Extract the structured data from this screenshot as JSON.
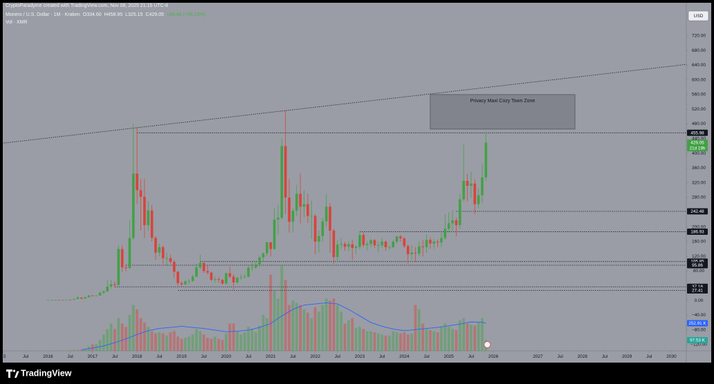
{
  "header": {
    "credit": "CryptoParadyme created with TradingView.com, Nov 08, 2025 21:15 UTC-8",
    "symbol": "Monero / U.S. Dollar · 1M · Kraken",
    "quote": [
      "O334.60",
      "H458.95",
      "L325.15",
      "C429.05",
      "+94.45 (+28.23%)"
    ],
    "volume_title": "Vol · XMR"
  },
  "currency_button": "USD",
  "footer": {
    "brand": "TradingView"
  },
  "chart_data": {
    "type": "candlestick",
    "up_color": "#43a047",
    "down_color": "#d9433b",
    "x": [
      "2016-01",
      "2016-02",
      "2016-03",
      "2016-04",
      "2016-05",
      "2016-06",
      "2016-07",
      "2016-08",
      "2016-09",
      "2016-10",
      "2016-11",
      "2016-12",
      "2017-01",
      "2017-02",
      "2017-03",
      "2017-04",
      "2017-05",
      "2017-06",
      "2017-07",
      "2017-08",
      "2017-09",
      "2017-10",
      "2017-11",
      "2017-12",
      "2018-01",
      "2018-02",
      "2018-03",
      "2018-04",
      "2018-05",
      "2018-06",
      "2018-07",
      "2018-08",
      "2018-09",
      "2018-10",
      "2018-11",
      "2018-12",
      "2019-01",
      "2019-02",
      "2019-03",
      "2019-04",
      "2019-05",
      "2019-06",
      "2019-07",
      "2019-08",
      "2019-09",
      "2019-10",
      "2019-11",
      "2019-12",
      "2020-01",
      "2020-02",
      "2020-03",
      "2020-04",
      "2020-05",
      "2020-06",
      "2020-07",
      "2020-08",
      "2020-09",
      "2020-10",
      "2020-11",
      "2020-12",
      "2021-01",
      "2021-02",
      "2021-03",
      "2021-04",
      "2021-05",
      "2021-06",
      "2021-07",
      "2021-08",
      "2021-09",
      "2021-10",
      "2021-11",
      "2021-12",
      "2022-01",
      "2022-02",
      "2022-03",
      "2022-04",
      "2022-05",
      "2022-06",
      "2022-07",
      "2022-08",
      "2022-09",
      "2022-10",
      "2022-11",
      "2022-12",
      "2023-01",
      "2023-02",
      "2023-03",
      "2023-04",
      "2023-05",
      "2023-06",
      "2023-07",
      "2023-08",
      "2023-09",
      "2023-10",
      "2023-11",
      "2023-12",
      "2024-01",
      "2024-02",
      "2024-03",
      "2024-04",
      "2024-05",
      "2024-06",
      "2024-07",
      "2024-08",
      "2024-09",
      "2024-10",
      "2024-11",
      "2024-12",
      "2025-01",
      "2025-02",
      "2025-03",
      "2025-04",
      "2025-05",
      "2025-06",
      "2025-07",
      "2025-08",
      "2025-09",
      "2025-10",
      "2025-11"
    ],
    "open": [
      0.6,
      0.9,
      1.5,
      1.9,
      1.3,
      1.3,
      2.3,
      2.0,
      4.0,
      8.0,
      5.0,
      9.0,
      13.8,
      13.0,
      13.4,
      21.0,
      25.0,
      38.0,
      44.0,
      42.0,
      140,
      90,
      88,
      170,
      345,
      300,
      282,
      205,
      245,
      170,
      130,
      145,
      115,
      115,
      105,
      78,
      47,
      44,
      52,
      53,
      65,
      90,
      102,
      80,
      76,
      56,
      58,
      56,
      46,
      74,
      65,
      49,
      62,
      63,
      65,
      89,
      90,
      98,
      117,
      128,
      158,
      140,
      220,
      225,
      420,
      280,
      214,
      244,
      290,
      255,
      262,
      230,
      230,
      160,
      175,
      215,
      255,
      190,
      118,
      152,
      154,
      146,
      153,
      143,
      146,
      178,
      151,
      154,
      164,
      150,
      150,
      160,
      145,
      145,
      160,
      174,
      169,
      148,
      126,
      130,
      128,
      147,
      145,
      165,
      155,
      160,
      158,
      170,
      195,
      210,
      218,
      205,
      275,
      325,
      312,
      318,
      262,
      286,
      334.6
    ],
    "high": [
      1.0,
      1.8,
      2.4,
      2.0,
      1.5,
      2.8,
      2.4,
      5.5,
      12,
      8.5,
      9.5,
      14.5,
      14.5,
      14.0,
      25,
      27,
      55,
      55,
      52,
      150,
      150,
      98,
      220,
      480,
      470,
      330,
      330,
      270,
      260,
      175,
      155,
      150,
      130,
      125,
      110,
      80,
      52,
      56,
      58,
      70,
      100,
      125,
      103,
      95,
      78,
      65,
      64,
      58,
      76,
      92,
      72,
      64,
      72,
      72,
      95,
      104,
      104,
      122,
      131,
      160,
      160,
      250,
      260,
      440,
      517,
      330,
      250,
      315,
      345,
      300,
      290,
      272,
      235,
      190,
      225,
      290,
      265,
      195,
      165,
      170,
      160,
      160,
      165,
      150,
      187,
      186,
      160,
      168,
      167,
      160,
      170,
      163,
      150,
      165,
      176,
      178,
      172,
      152,
      150,
      145,
      160,
      165,
      180,
      172,
      167,
      165,
      185,
      235,
      240,
      245,
      225,
      290,
      425,
      345,
      350,
      330,
      305,
      370,
      458.95
    ],
    "low": [
      0.4,
      0.8,
      1.2,
      1.2,
      1.1,
      1.2,
      1.7,
      1.9,
      3.8,
      4.5,
      4.8,
      7.8,
      10.5,
      11.5,
      13,
      18,
      23,
      33,
      35,
      41,
      78,
      80,
      86,
      165,
      262,
      190,
      170,
      190,
      160,
      110,
      120,
      100,
      95,
      100,
      62,
      40,
      38,
      42,
      45,
      50,
      63,
      85,
      75,
      70,
      52,
      48,
      48,
      43,
      44,
      60,
      30,
      45,
      56,
      60,
      62,
      80,
      85,
      90,
      107,
      120,
      120,
      138,
      180,
      220,
      235,
      185,
      185,
      230,
      210,
      225,
      210,
      168,
      125,
      130,
      160,
      200,
      130,
      100,
      104,
      140,
      135,
      134,
      110,
      126,
      140,
      145,
      137,
      145,
      143,
      131,
      144,
      135,
      138,
      142,
      155,
      160,
      143,
      100,
      110,
      105,
      120,
      120,
      130,
      140,
      140,
      145,
      145,
      165,
      185,
      190,
      175,
      195,
      270,
      270,
      280,
      235,
      250,
      265,
      325.15
    ],
    "close": [
      0.9,
      1.5,
      1.9,
      1.3,
      1.3,
      2.3,
      2.0,
      4.0,
      8.0,
      5.0,
      9.0,
      13.8,
      13.0,
      13.4,
      21.0,
      25.0,
      38.0,
      44.0,
      42.0,
      140,
      90,
      88,
      170,
      345,
      300,
      282,
      205,
      245,
      170,
      130,
      145,
      115,
      115,
      105,
      78,
      47,
      44,
      52,
      53,
      65,
      90,
      102,
      80,
      76,
      56,
      58,
      56,
      46,
      74,
      65,
      49,
      62,
      63,
      65,
      89,
      90,
      98,
      117,
      128,
      158,
      140,
      220,
      225,
      420,
      280,
      214,
      244,
      290,
      255,
      262,
      230,
      230,
      160,
      175,
      215,
      255,
      190,
      118,
      152,
      154,
      146,
      153,
      143,
      146,
      178,
      151,
      154,
      164,
      150,
      150,
      160,
      145,
      145,
      160,
      174,
      169,
      148,
      126,
      130,
      128,
      147,
      145,
      165,
      155,
      160,
      158,
      170,
      195,
      210,
      218,
      205,
      275,
      325,
      312,
      318,
      262,
      286,
      334.6,
      429.05
    ],
    "countdown": "21d 19h",
    "volume": {
      "values": [
        1,
        1,
        2,
        2,
        2,
        3,
        3,
        8,
        10,
        8,
        20,
        40,
        60,
        60,
        100,
        150,
        200,
        250,
        200,
        300,
        250,
        220,
        330,
        420,
        380,
        300,
        260,
        220,
        180,
        160,
        170,
        160,
        140,
        170,
        180,
        130,
        110,
        120,
        130,
        150,
        200,
        180,
        150,
        120,
        110,
        130,
        110,
        100,
        160,
        250,
        250,
        180,
        150,
        170,
        220,
        200,
        170,
        230,
        330,
        300,
        700,
        550,
        480,
        780,
        650,
        420,
        460,
        440,
        420,
        380,
        350,
        300,
        400,
        360,
        420,
        480,
        460,
        480,
        420,
        360,
        250,
        280,
        300,
        210,
        220,
        200,
        180,
        180,
        170,
        160,
        150,
        140,
        140,
        180,
        170,
        160,
        170,
        150,
        160,
        420,
        380,
        250,
        200,
        190,
        180,
        170,
        220,
        250,
        220,
        200,
        190,
        280,
        300,
        250,
        240,
        230,
        260,
        300,
        97.53
      ],
      "badge_label": "97.53 K",
      "badge_color": "#26a69a"
    },
    "volume_ma": {
      "color": "#2962ff",
      "x": [
        "2016-10",
        "2017-01",
        "2017-04",
        "2017-07",
        "2017-10",
        "2018-01",
        "2018-04",
        "2018-07",
        "2018-10",
        "2019-01",
        "2019-04",
        "2019-07",
        "2019-10",
        "2020-01",
        "2020-04",
        "2020-07",
        "2020-10",
        "2021-01",
        "2021-04",
        "2021-07",
        "2021-10",
        "2022-01",
        "2022-04",
        "2022-07",
        "2022-10",
        "2023-01",
        "2023-04",
        "2023-07",
        "2023-10",
        "2024-01",
        "2024-04",
        "2024-07",
        "2024-10",
        "2025-01",
        "2025-04",
        "2025-07",
        "2025-10",
        "2025-11"
      ],
      "values": [
        10,
        25,
        45,
        75,
        110,
        150,
        185,
        205,
        215,
        225,
        215,
        205,
        190,
        175,
        180,
        190,
        215,
        250,
        320,
        380,
        420,
        430,
        440,
        430,
        380,
        320,
        260,
        225,
        200,
        185,
        195,
        205,
        215,
        230,
        245,
        265,
        262,
        252.91
      ],
      "badge_label": "252.91 K"
    },
    "volume_lim": [
      0,
      3120
    ],
    "xlim": [
      "2015-01",
      "2030-05"
    ],
    "xticks": [
      {
        "value": "2015-01",
        "label": "15"
      },
      {
        "value": "2015-07",
        "label": "Jul"
      },
      {
        "value": "2016-01",
        "label": "2016"
      },
      {
        "value": "2016-07",
        "label": "Jul"
      },
      {
        "value": "2017-01",
        "label": "2017"
      },
      {
        "value": "2017-07",
        "label": "Jul"
      },
      {
        "value": "2018-01",
        "label": "2018"
      },
      {
        "value": "2018-07",
        "label": "Jul"
      },
      {
        "value": "2019-01",
        "label": "2019"
      },
      {
        "value": "2019-07",
        "label": "Jul"
      },
      {
        "value": "2020-01",
        "label": "2020"
      },
      {
        "value": "2020-07",
        "label": "Jul"
      },
      {
        "value": "2021-01",
        "label": "2021"
      },
      {
        "value": "2021-07",
        "label": "Jul"
      },
      {
        "value": "2022-01",
        "label": "2022"
      },
      {
        "value": "2022-07",
        "label": "Jul"
      },
      {
        "value": "2023-01",
        "label": "2023"
      },
      {
        "value": "2023-07",
        "label": "Jul"
      },
      {
        "value": "2024-01",
        "label": "2024"
      },
      {
        "value": "2024-07",
        "label": "Jul"
      },
      {
        "value": "2025-01",
        "label": "2025"
      },
      {
        "value": "2025-07",
        "label": "Jul"
      },
      {
        "value": "2026-01",
        "label": "2026"
      },
      {
        "value": "2027-01",
        "label": "2027"
      },
      {
        "value": "2027-07",
        "label": "Jul"
      },
      {
        "value": "2028-01",
        "label": "2028"
      },
      {
        "value": "2028-07",
        "label": "Jul"
      },
      {
        "value": "2029-01",
        "label": "2029"
      },
      {
        "value": "2029-07",
        "label": "Jul"
      },
      {
        "value": "2030-01",
        "label": "2030"
      }
    ],
    "ylim": [
      -137,
      789
    ],
    "yticks": [
      {
        "value": 720,
        "label": "720.00"
      },
      {
        "value": 680,
        "label": "680.00"
      },
      {
        "value": 640,
        "label": "640.00"
      },
      {
        "value": 600,
        "label": "600.00"
      },
      {
        "value": 560,
        "label": "560.00"
      },
      {
        "value": 520,
        "label": "520.00"
      },
      {
        "value": 480,
        "label": "480.00"
      },
      {
        "value": 440,
        "label": "440.00"
      },
      {
        "value": 400,
        "label": "400.00"
      },
      {
        "value": 360,
        "label": "360.00"
      },
      {
        "value": 320,
        "label": "320.00"
      },
      {
        "value": 280,
        "label": "280.00"
      },
      {
        "value": 240,
        "label": "240.00"
      },
      {
        "value": 200,
        "label": "200.00"
      },
      {
        "value": 160,
        "label": "160.00"
      },
      {
        "value": 120,
        "label": "120.00"
      },
      {
        "value": 80,
        "label": "80.00"
      },
      {
        "value": 40,
        "label": "40.00"
      },
      {
        "value": 0,
        "label": "0.00"
      },
      {
        "value": -40,
        "label": "−40.00"
      },
      {
        "value": -80,
        "label": "−80.00"
      },
      {
        "value": -120,
        "label": "−120.00"
      }
    ],
    "levels": [
      {
        "value": 455.98,
        "from": "2018-01"
      },
      {
        "value": 242.48,
        "from": "2025-03"
      },
      {
        "value": 186.93,
        "from": "2023-01"
      },
      {
        "value": 105.85,
        "from": "2019-06"
      },
      {
        "value": 95.86,
        "from": "2017-10"
      },
      {
        "value": 37.18,
        "from": "2017-07"
      },
      {
        "value": 27.41,
        "from": "2018-12"
      }
    ],
    "trendline": [
      {
        "x": "2015-01",
        "y": 428
      },
      {
        "x": "2030-05",
        "y": 642
      }
    ],
    "zone": {
      "x": [
        "2024-08",
        "2027-11"
      ],
      "y": [
        466,
        560
      ],
      "label": "Privacy Maxi Cozy Town Zone"
    }
  }
}
